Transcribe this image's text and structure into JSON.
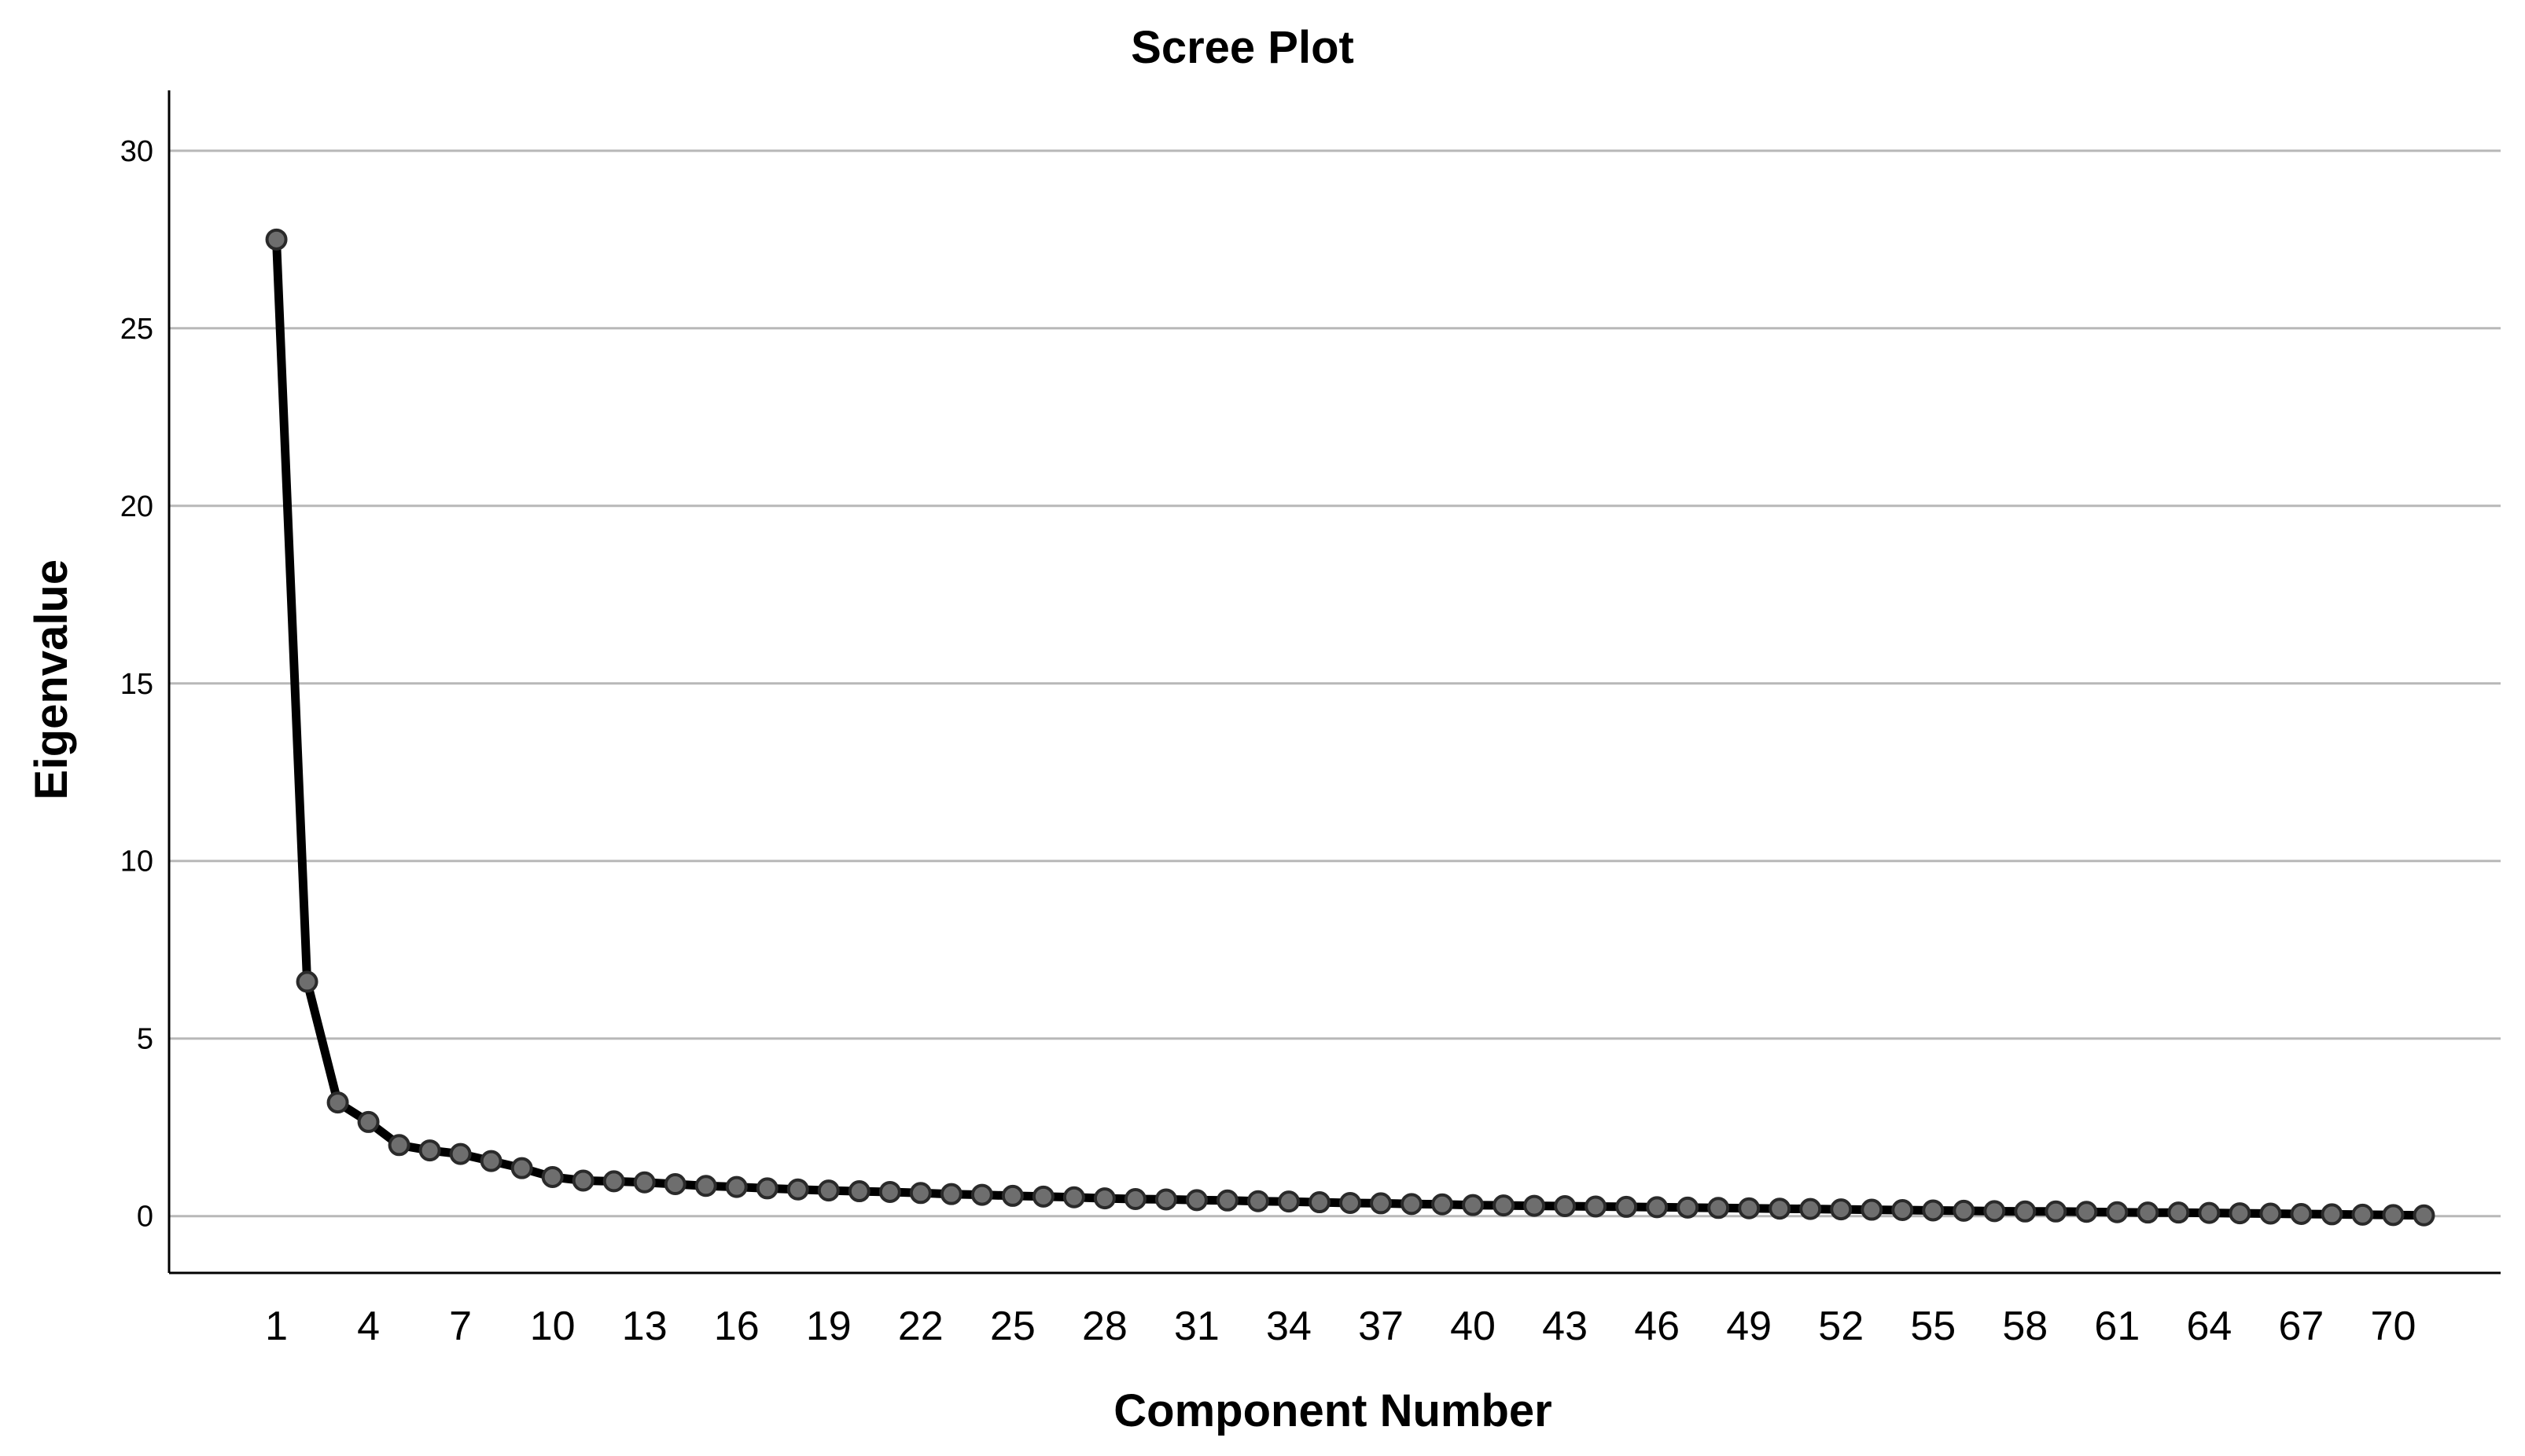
{
  "chart_data": {
    "type": "line",
    "title": "Scree Plot",
    "xlabel": "Component Number",
    "ylabel": "Eigenvalue",
    "x_ticks": [
      1,
      4,
      7,
      10,
      13,
      16,
      19,
      22,
      25,
      28,
      31,
      34,
      37,
      40,
      43,
      46,
      49,
      52,
      55,
      58,
      61,
      64,
      67,
      70
    ],
    "y_ticks": [
      0,
      5,
      10,
      15,
      20,
      25,
      30
    ],
    "xlim": [
      -2.5,
      73.5
    ],
    "ylim": [
      -1.6,
      31.7
    ],
    "grid": "horizontal",
    "legend": "none",
    "colors": {
      "line": "#000000",
      "marker_fill": "#6e6e6e",
      "marker_stroke": "#2a2a2a",
      "grid": "#b8b8b8",
      "axis": "#000000"
    },
    "series": [
      {
        "x": [
          1,
          2,
          3,
          4,
          5,
          6,
          7,
          8,
          9,
          10,
          11,
          12,
          13,
          14,
          15,
          16,
          17,
          18,
          19,
          20,
          21,
          22,
          23,
          24,
          25,
          26,
          27,
          28,
          29,
          30,
          31,
          32,
          33,
          34,
          35,
          36,
          37,
          38,
          39,
          40,
          41,
          42,
          43,
          44,
          45,
          46,
          47,
          48,
          49,
          50,
          51,
          52,
          53,
          54,
          55,
          56,
          57,
          58,
          59,
          60,
          61,
          62,
          63,
          64,
          65,
          66,
          67,
          68,
          69,
          70,
          71
        ],
        "y": [
          27.5,
          6.6,
          3.2,
          2.65,
          2.0,
          1.85,
          1.75,
          1.55,
          1.35,
          1.1,
          1.0,
          0.98,
          0.95,
          0.9,
          0.85,
          0.82,
          0.78,
          0.75,
          0.72,
          0.7,
          0.68,
          0.65,
          0.62,
          0.6,
          0.57,
          0.55,
          0.53,
          0.5,
          0.48,
          0.47,
          0.45,
          0.44,
          0.42,
          0.41,
          0.39,
          0.37,
          0.36,
          0.34,
          0.33,
          0.31,
          0.3,
          0.29,
          0.28,
          0.27,
          0.26,
          0.25,
          0.24,
          0.23,
          0.22,
          0.21,
          0.2,
          0.19,
          0.18,
          0.17,
          0.16,
          0.15,
          0.14,
          0.13,
          0.13,
          0.12,
          0.11,
          0.1,
          0.1,
          0.09,
          0.08,
          0.07,
          0.06,
          0.05,
          0.04,
          0.03,
          0.02
        ]
      }
    ]
  }
}
